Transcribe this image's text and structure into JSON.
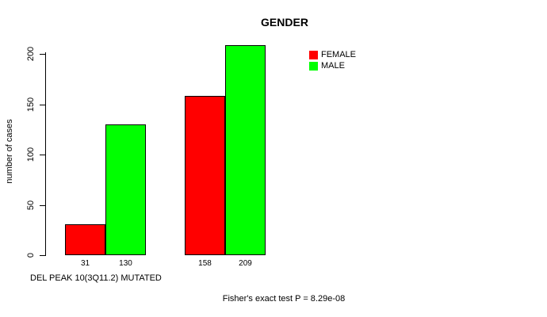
{
  "chart_data": {
    "type": "bar",
    "title": "GENDER",
    "ylabel": "number of cases",
    "xlabel": "DEL PEAK 10(3Q11.2) MUTATED",
    "annotation": "Fisher's exact test P = 8.29e-08",
    "series": [
      {
        "name": "FEMALE",
        "color": "#FF0000",
        "values": [
          31,
          158
        ]
      },
      {
        "name": "MALE",
        "color": "#00FF00",
        "values": [
          130,
          209
        ]
      }
    ],
    "bar_value_labels": [
      [
        "31",
        "158"
      ],
      [
        "130",
        "209"
      ]
    ],
    "ylim": [
      0,
      200
    ],
    "yticks": [
      0,
      50,
      100,
      150,
      200
    ],
    "grid": false,
    "legend_position": "top-right",
    "bar_border_color": "#000000",
    "background_color": "#FFFFFF",
    "text_color": "#000000"
  }
}
